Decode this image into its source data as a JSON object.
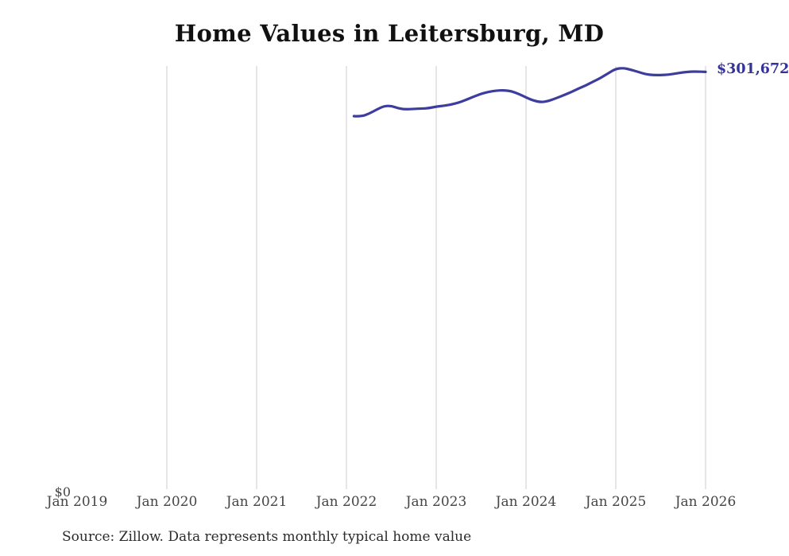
{
  "page": {
    "title": "Home Values in Leitersburg, MD",
    "source_note": "Source: Zillow. Data represents monthly typical home value",
    "end_value_label": "$301,672",
    "y_zero_label": "$0"
  },
  "colors": {
    "line": "#3d3d9e",
    "end_label_text": "#333399",
    "gridline": "#cccccc",
    "axis_text": "#454545",
    "title_text": "#111111",
    "source_text": "#2b2b2b",
    "background": "#ffffff"
  },
  "chart_data": {
    "type": "line",
    "title": "Home Values in Leitersburg, MD",
    "xlabel": "",
    "ylabel": "",
    "ylim": [
      0,
      305900
    ],
    "grid": "vertical-only",
    "legend": "none",
    "x_range": [
      "Jan 2019",
      "Jan 2026"
    ],
    "x_ticks": [
      {
        "label": "Jan 2019",
        "gridline": false
      },
      {
        "label": "Jan 2020",
        "gridline": true
      },
      {
        "label": "Jan 2021",
        "gridline": true
      },
      {
        "label": "Jan 2022",
        "gridline": true
      },
      {
        "label": "Jan 2023",
        "gridline": true
      },
      {
        "label": "Jan 2024",
        "gridline": true
      },
      {
        "label": "Jan 2025",
        "gridline": true
      },
      {
        "label": "Jan 2026",
        "gridline": true
      }
    ],
    "y_axis": {
      "min": 0,
      "min_label": "$0"
    },
    "end_label": "$301,672",
    "end_value": 301672,
    "series": [
      {
        "name": "Monthly typical home value",
        "color": "#3d3d9e",
        "points": [
          [
            "2022-02",
            270000
          ],
          [
            "2022-03",
            269700
          ],
          [
            "2022-04",
            271700
          ],
          [
            "2022-05",
            274600
          ],
          [
            "2022-06",
            277200
          ],
          [
            "2022-07",
            277400
          ],
          [
            "2022-08",
            275400
          ],
          [
            "2022-09",
            274900
          ],
          [
            "2022-10",
            275200
          ],
          [
            "2022-11",
            275400
          ],
          [
            "2022-12",
            275700
          ],
          [
            "2023-01",
            276900
          ],
          [
            "2023-02",
            277400
          ],
          [
            "2023-03",
            278300
          ],
          [
            "2023-04",
            279700
          ],
          [
            "2023-05",
            281700
          ],
          [
            "2023-06",
            284000
          ],
          [
            "2023-07",
            286000
          ],
          [
            "2023-08",
            287400
          ],
          [
            "2023-09",
            288300
          ],
          [
            "2023-10",
            288500
          ],
          [
            "2023-11",
            288000
          ],
          [
            "2023-12",
            286000
          ],
          [
            "2024-01",
            283400
          ],
          [
            "2024-02",
            281100
          ],
          [
            "2024-03",
            280000
          ],
          [
            "2024-04",
            280800
          ],
          [
            "2024-05",
            282800
          ],
          [
            "2024-06",
            284900
          ],
          [
            "2024-07",
            287100
          ],
          [
            "2024-08",
            289700
          ],
          [
            "2024-09",
            292000
          ],
          [
            "2024-10",
            294800
          ],
          [
            "2024-11",
            297400
          ],
          [
            "2024-12",
            300800
          ],
          [
            "2025-01",
            303900
          ],
          [
            "2025-02",
            304500
          ],
          [
            "2025-03",
            303300
          ],
          [
            "2025-04",
            301700
          ],
          [
            "2025-05",
            300000
          ],
          [
            "2025-06",
            299400
          ],
          [
            "2025-07",
            299400
          ],
          [
            "2025-08",
            299700
          ],
          [
            "2025-09",
            300500
          ],
          [
            "2025-10",
            301400
          ],
          [
            "2025-11",
            301900
          ],
          [
            "2025-12",
            301900
          ],
          [
            "2026-01",
            301672
          ]
        ]
      }
    ]
  }
}
